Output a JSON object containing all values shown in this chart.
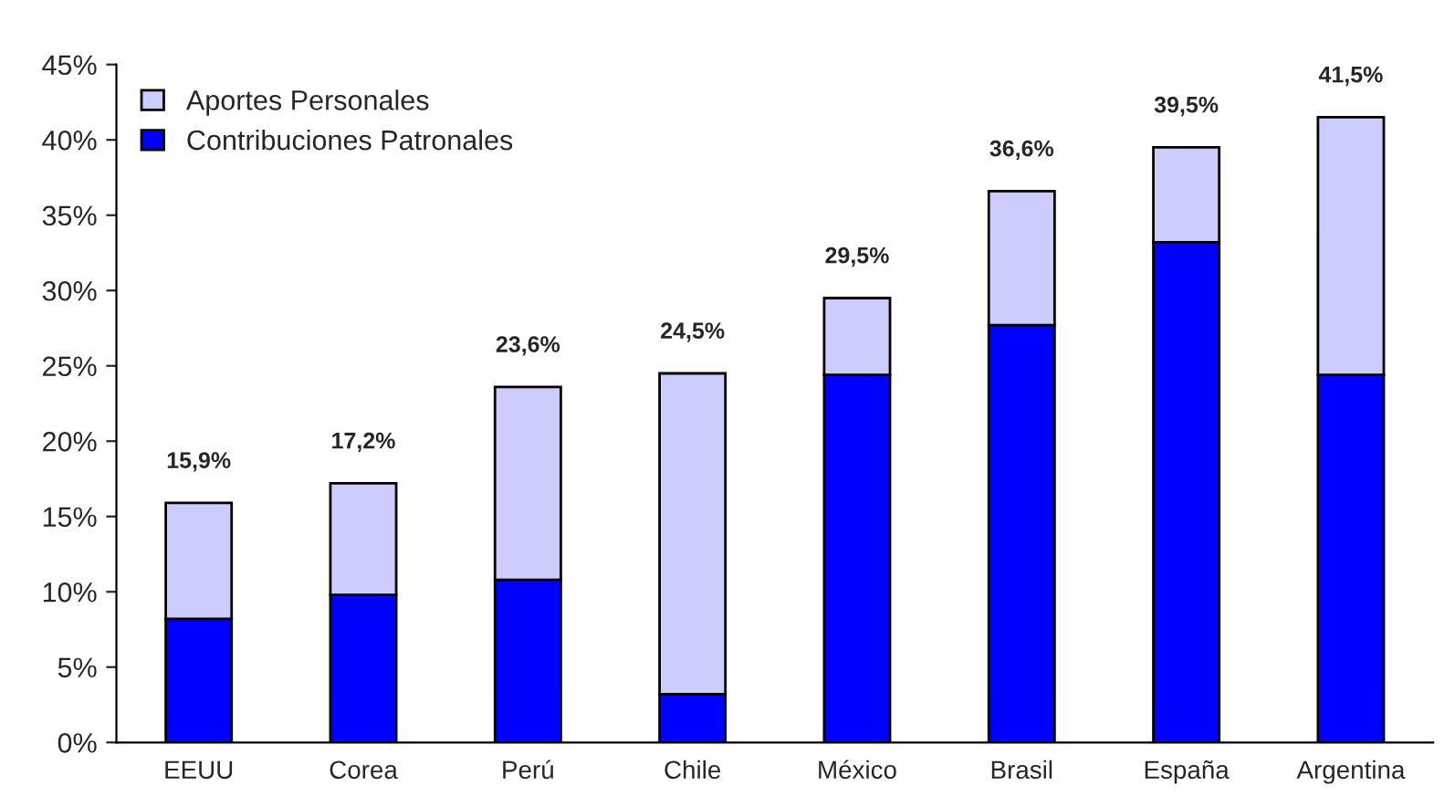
{
  "chart_data": {
    "type": "bar",
    "stacked": true,
    "categories": [
      "EEUU",
      "Corea",
      "Perú",
      "Chile",
      "México",
      "Brasil",
      "España",
      "Argentina"
    ],
    "series": [
      {
        "name": "Contribuciones Patronales",
        "color": "#0000ff",
        "values": [
          8.2,
          9.8,
          10.8,
          3.2,
          24.4,
          27.7,
          33.2,
          24.4
        ]
      },
      {
        "name": "Aportes Personales",
        "color": "#ccccff",
        "values": [
          7.7,
          7.4,
          12.8,
          21.3,
          5.1,
          8.9,
          6.3,
          17.1
        ]
      }
    ],
    "totals": [
      "15,9%",
      "17,2%",
      "23,6%",
      "24,5%",
      "29,5%",
      "36,6%",
      "39,5%",
      "41,5%"
    ],
    "ylim": [
      0,
      45
    ],
    "yticks": [
      {
        "value": 0,
        "label": "0%"
      },
      {
        "value": 5,
        "label": "5%"
      },
      {
        "value": 10,
        "label": "10%"
      },
      {
        "value": 15,
        "label": "15%"
      },
      {
        "value": 20,
        "label": "20%"
      },
      {
        "value": 25,
        "label": "25%"
      },
      {
        "value": 30,
        "label": "30%"
      },
      {
        "value": 35,
        "label": "35%"
      },
      {
        "value": 40,
        "label": "40%"
      },
      {
        "value": 45,
        "label": "45%"
      }
    ],
    "grid": false,
    "legend": "top left"
  }
}
